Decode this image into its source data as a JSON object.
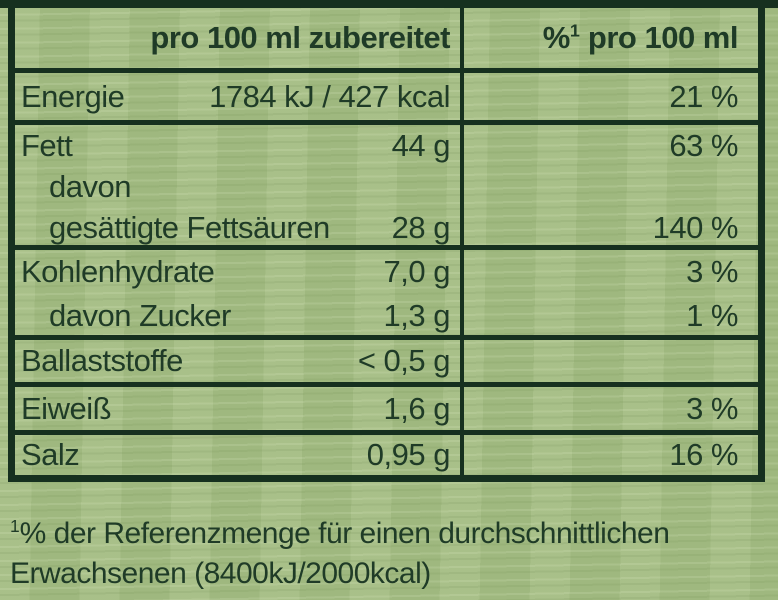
{
  "table": {
    "header": {
      "left": "pro 100 ml zubereitet",
      "right_pct": "%",
      "right_sup": "1",
      "right_rest": " pro 100 ml"
    },
    "rows": [
      {
        "name": "energie",
        "lines": [
          {
            "label": "Energie",
            "value": "1784 kJ / 427 kcal",
            "pct": "21 %"
          }
        ]
      },
      {
        "name": "fett",
        "lines": [
          {
            "label": "Fett",
            "value": "44 g",
            "pct": "63 %"
          },
          {
            "label": "davon",
            "value": "",
            "pct": ""
          },
          {
            "label": "gesättigte Fettsäuren",
            "value": "28 g",
            "pct": "140 %"
          }
        ]
      },
      {
        "name": "kohlenhydrate",
        "lines": [
          {
            "label": "Kohlenhydrate",
            "value": "7,0 g",
            "pct": "3 %"
          },
          {
            "label": "davon Zucker",
            "value": "1,3 g",
            "pct": "1 %"
          }
        ]
      },
      {
        "name": "ballaststoffe",
        "lines": [
          {
            "label": "Ballaststoffe",
            "value": "< 0,5 g",
            "pct": ""
          }
        ]
      },
      {
        "name": "eiweiss",
        "lines": [
          {
            "label": "Eiweiß",
            "value": "1,6 g",
            "pct": "3 %"
          }
        ]
      },
      {
        "name": "salz",
        "lines": [
          {
            "label": "Salz",
            "value": "0,95 g",
            "pct": "16 %"
          }
        ]
      }
    ]
  },
  "footnote": {
    "sup": "1",
    "line1": "% der Referenzmenge für einen durchschnittlichen",
    "line2": "Erwachsenen (8400kJ/2000kcal)"
  },
  "colors": {
    "background_green": "#a4bd83",
    "border_dark_green": "#16301f",
    "text_dark_green": "#1f3b27"
  }
}
